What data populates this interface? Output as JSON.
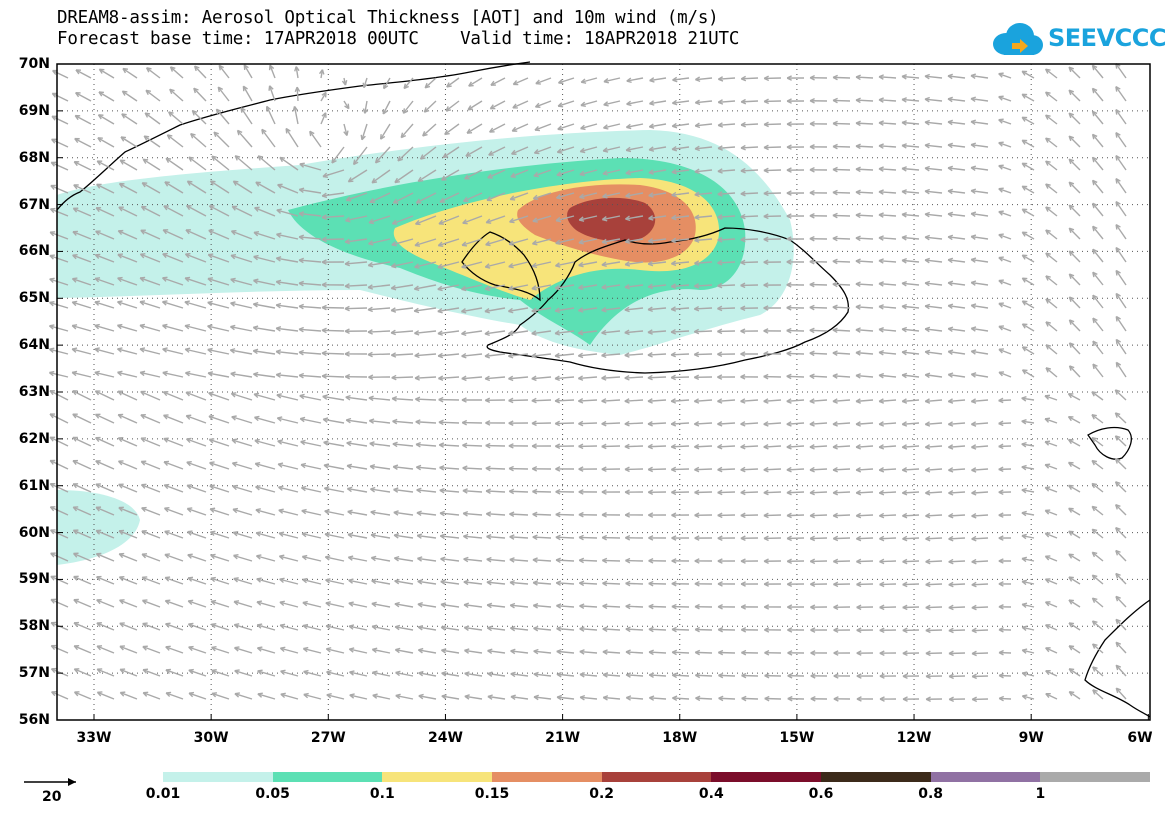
{
  "header": {
    "line1": "DREAM8-assim: Aerosol Optical Thickness [AOT] and 10m wind (m/s)",
    "line2": "Forecast base time: 17APR2018 00UTC    Valid time: 18APR2018 21UTC"
  },
  "logo": {
    "text": "SEEVCCC",
    "color": "#1aa3dd"
  },
  "map": {
    "lat_labels": [
      "70N",
      "69N",
      "68N",
      "67N",
      "66N",
      "65N",
      "64N",
      "63N",
      "62N",
      "61N",
      "60N",
      "59N",
      "58N",
      "57N",
      "56N"
    ],
    "lon_labels": [
      "33W",
      "30W",
      "27W",
      "24W",
      "21W",
      "18W",
      "15W",
      "12W",
      "9W",
      "6W"
    ],
    "field": "Aerosol Optical Thickness",
    "wind_reference_value": "20"
  },
  "legend": {
    "colors": [
      "#c4f1ea",
      "#5ce0b4",
      "#f7e47a",
      "#e58e63",
      "#a8413b",
      "#7b0d2a",
      "#3c2a1a",
      "#9071a3",
      "#aaaaaa"
    ],
    "thresholds": [
      "0.01",
      "0.05",
      "0.1",
      "0.15",
      "0.2",
      "0.4",
      "0.6",
      "0.8",
      "1"
    ]
  }
}
